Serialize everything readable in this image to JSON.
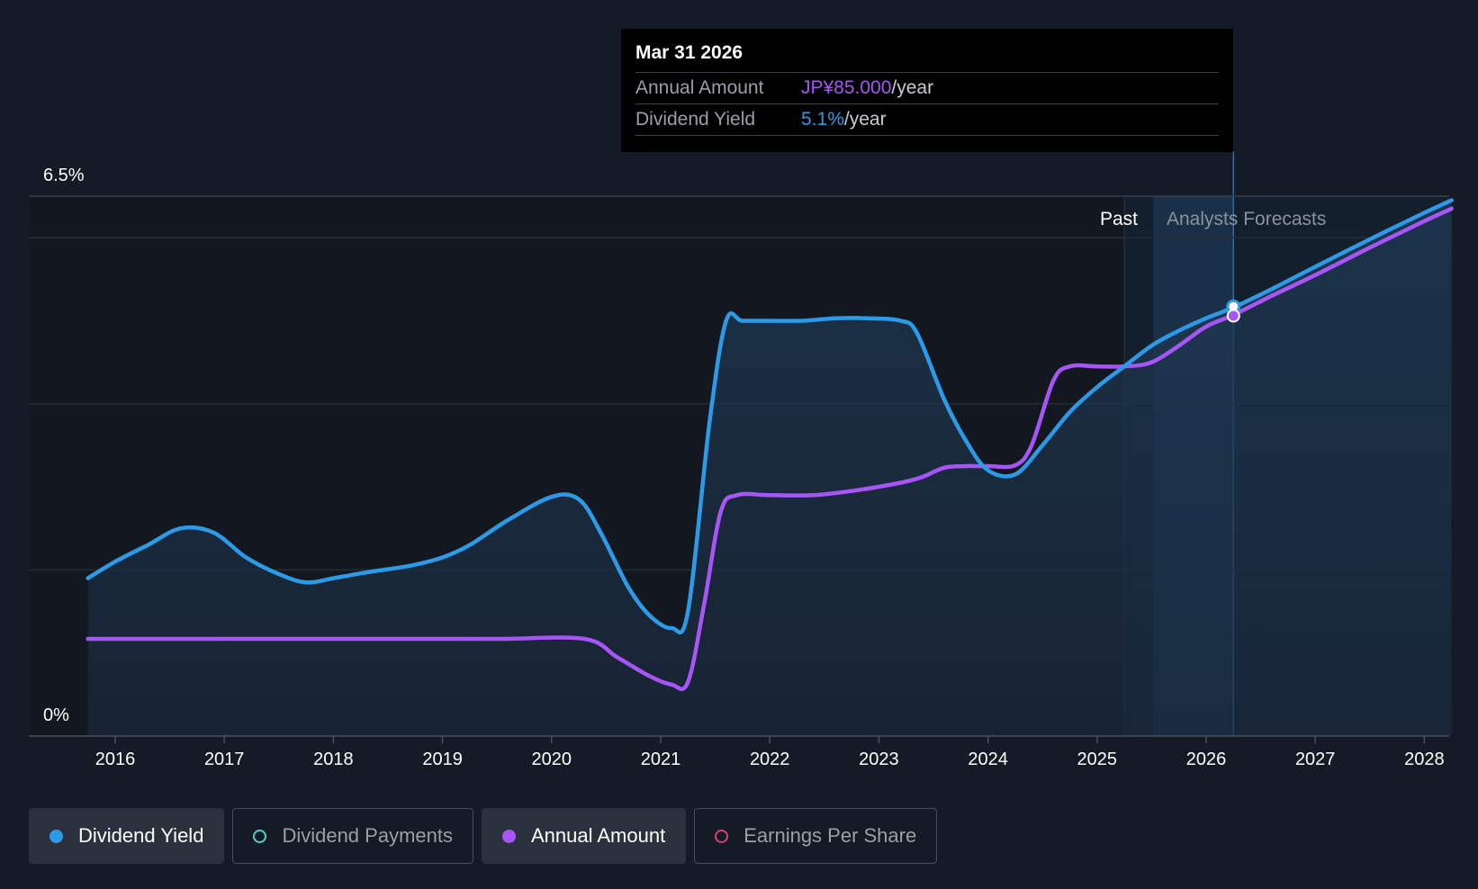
{
  "tooltip": {
    "date": "Mar 31 2026",
    "rows": [
      {
        "key": "Annual Amount",
        "value": "JP¥85.000",
        "unit": "/year"
      },
      {
        "key": "Dividend Yield",
        "value": "5.1%",
        "unit": "/year"
      }
    ]
  },
  "sections": {
    "past": "Past",
    "forecast": "Analysts Forecasts"
  },
  "legend": [
    {
      "label": "Dividend Yield",
      "color": "#2d9ae8",
      "active": true
    },
    {
      "label": "Dividend Payments",
      "color": "#4fd1c5",
      "active": false
    },
    {
      "label": "Annual Amount",
      "color": "#a855f7",
      "active": true
    },
    {
      "label": "Earnings Per Share",
      "color": "#d63f7a",
      "active": false
    }
  ],
  "colors": {
    "yield": "#2d9ae8",
    "amount": "#a855f7",
    "background": "#151b26"
  },
  "chart_data": {
    "type": "line",
    "y_tick_labels": [
      "0%",
      "6.5%"
    ],
    "ylim": [
      0,
      6.5
    ],
    "xlim": [
      2015.5,
      2028.25
    ],
    "x_ticks": [
      2016,
      2017,
      2018,
      2019,
      2020,
      2021,
      2022,
      2023,
      2024,
      2025,
      2026,
      2027,
      2028
    ],
    "past_forecast_boundary": 2025.25,
    "tooltip_x": 2026.25,
    "grid": true,
    "series": [
      {
        "name": "Dividend Yield",
        "values_unit": "%",
        "points": [
          [
            2015.75,
            1.9
          ],
          [
            2016.0,
            2.1
          ],
          [
            2016.3,
            2.3
          ],
          [
            2016.6,
            2.5
          ],
          [
            2016.9,
            2.45
          ],
          [
            2017.2,
            2.15
          ],
          [
            2017.5,
            1.95
          ],
          [
            2017.75,
            1.85
          ],
          [
            2018.0,
            1.9
          ],
          [
            2018.3,
            1.97
          ],
          [
            2018.7,
            2.05
          ],
          [
            2019.0,
            2.15
          ],
          [
            2019.25,
            2.3
          ],
          [
            2019.6,
            2.6
          ],
          [
            2020.0,
            2.88
          ],
          [
            2020.25,
            2.85
          ],
          [
            2020.45,
            2.45
          ],
          [
            2020.7,
            1.8
          ],
          [
            2020.9,
            1.45
          ],
          [
            2021.1,
            1.3
          ],
          [
            2021.25,
            1.5
          ],
          [
            2021.45,
            3.8
          ],
          [
            2021.6,
            5.0
          ],
          [
            2021.75,
            5.0
          ],
          [
            2022.0,
            5.0
          ],
          [
            2022.3,
            5.0
          ],
          [
            2022.6,
            5.03
          ],
          [
            2022.9,
            5.03
          ],
          [
            2023.2,
            5.0
          ],
          [
            2023.35,
            4.85
          ],
          [
            2023.6,
            4.05
          ],
          [
            2023.8,
            3.55
          ],
          [
            2024.0,
            3.2
          ],
          [
            2024.25,
            3.15
          ],
          [
            2024.5,
            3.5
          ],
          [
            2024.75,
            3.9
          ],
          [
            2025.0,
            4.2
          ],
          [
            2025.25,
            4.45
          ],
          [
            2025.5,
            4.7
          ],
          [
            2025.75,
            4.88
          ],
          [
            2026.0,
            5.03
          ],
          [
            2026.25,
            5.16
          ],
          [
            2026.6,
            5.38
          ],
          [
            2027.0,
            5.65
          ],
          [
            2027.5,
            5.98
          ],
          [
            2028.0,
            6.3
          ],
          [
            2028.25,
            6.45
          ]
        ]
      },
      {
        "name": "Annual Amount",
        "values_unit": "scaled to yield axis",
        "points": [
          [
            2015.75,
            1.17
          ],
          [
            2016.5,
            1.17
          ],
          [
            2017.5,
            1.17
          ],
          [
            2018.5,
            1.17
          ],
          [
            2019.5,
            1.17
          ],
          [
            2020.3,
            1.17
          ],
          [
            2020.6,
            0.95
          ],
          [
            2020.9,
            0.72
          ],
          [
            2021.1,
            0.62
          ],
          [
            2021.25,
            0.65
          ],
          [
            2021.4,
            1.6
          ],
          [
            2021.55,
            2.7
          ],
          [
            2021.7,
            2.9
          ],
          [
            2022.0,
            2.9
          ],
          [
            2022.4,
            2.9
          ],
          [
            2022.8,
            2.96
          ],
          [
            2023.2,
            3.05
          ],
          [
            2023.4,
            3.12
          ],
          [
            2023.6,
            3.23
          ],
          [
            2023.8,
            3.25
          ],
          [
            2024.0,
            3.25
          ],
          [
            2024.25,
            3.26
          ],
          [
            2024.4,
            3.5
          ],
          [
            2024.6,
            4.28
          ],
          [
            2024.75,
            4.45
          ],
          [
            2025.0,
            4.45
          ],
          [
            2025.25,
            4.45
          ],
          [
            2025.5,
            4.5
          ],
          [
            2025.75,
            4.7
          ],
          [
            2026.0,
            4.93
          ],
          [
            2026.25,
            5.07
          ],
          [
            2026.6,
            5.3
          ],
          [
            2027.0,
            5.55
          ],
          [
            2027.5,
            5.88
          ],
          [
            2028.0,
            6.2
          ],
          [
            2028.25,
            6.35
          ]
        ]
      }
    ]
  }
}
